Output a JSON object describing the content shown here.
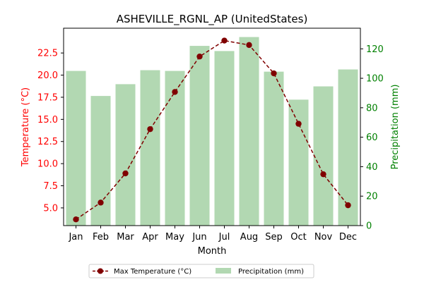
{
  "chart_data": {
    "type": "bar+line",
    "title": "ASHEVILLE_RGNL_AP (UnitedStates)",
    "xlabel": "Month",
    "categories": [
      "Jan",
      "Feb",
      "Mar",
      "Apr",
      "May",
      "Jun",
      "Jul",
      "Aug",
      "Sep",
      "Oct",
      "Nov",
      "Dec"
    ],
    "left_axis": {
      "label": "Temperature (°C)",
      "ylim": [
        3.0,
        25.3
      ],
      "ticks": [
        5.0,
        7.5,
        10.0,
        12.5,
        15.0,
        17.5,
        20.0,
        22.5
      ],
      "tick_labels": [
        "5.0",
        "7.5",
        "10.0",
        "12.5",
        "15.0",
        "17.5",
        "20.0",
        "22.5"
      ],
      "color": "#ff0000"
    },
    "right_axis": {
      "label": "Precipitation (mm)",
      "ylim": [
        0,
        134
      ],
      "ticks": [
        0,
        20,
        40,
        60,
        80,
        100,
        120
      ],
      "tick_labels": [
        "0",
        "20",
        "40",
        "60",
        "80",
        "100",
        "120"
      ],
      "color": "#008000"
    },
    "series": [
      {
        "name": "Max Temperature (°C)",
        "type": "line",
        "axis": "left",
        "color": "#800000",
        "values": [
          3.7,
          5.6,
          8.9,
          13.9,
          18.1,
          22.1,
          23.9,
          23.4,
          20.2,
          14.5,
          8.8,
          5.3
        ]
      },
      {
        "name": "Precipitation (mm)",
        "type": "bar",
        "axis": "right",
        "color": "#b2d8b2",
        "values": [
          105,
          88,
          96,
          105.5,
          105,
          122,
          118.5,
          128,
          104.5,
          85.5,
          94.5,
          106
        ]
      }
    ],
    "legend": {
      "placement": "bottom-center",
      "items": [
        "Max Temperature (°C)",
        "Precipitation (mm)"
      ]
    },
    "grid": false
  }
}
